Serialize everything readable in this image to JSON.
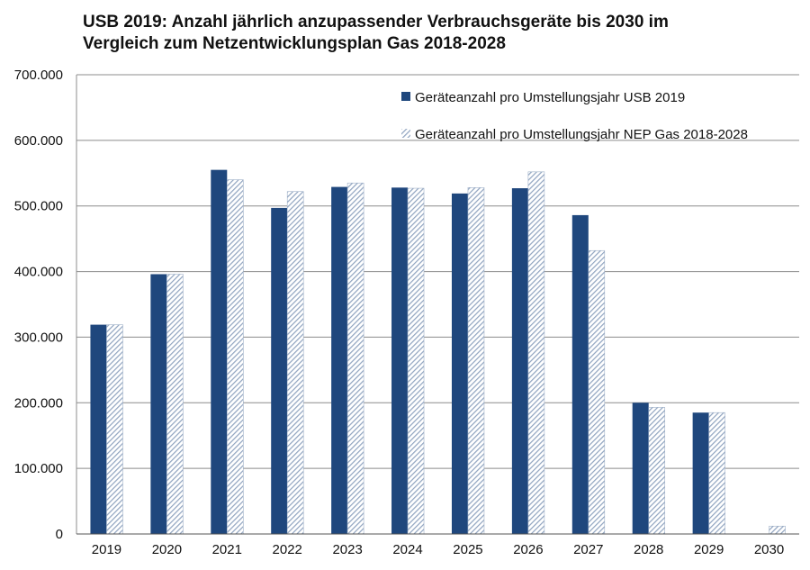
{
  "chart_data": {
    "type": "bar",
    "title_line1": "USB 2019: Anzahl jährlich anzupassender Verbrauchsgeräte bis 2030 im",
    "title_line2": "Vergleich zum Netzentwicklungsplan Gas 2018-2028",
    "categories": [
      "2019",
      "2020",
      "2021",
      "2022",
      "2023",
      "2024",
      "2025",
      "2026",
      "2027",
      "2028",
      "2029",
      "2030"
    ],
    "series": [
      {
        "name": "Geräteanzahl pro Umstellungsjahr USB 2019",
        "values": [
          319000,
          396000,
          555000,
          497000,
          529000,
          528000,
          519000,
          527000,
          486000,
          200000,
          185000,
          0
        ],
        "fill": "solid",
        "color": "#1f477d"
      },
      {
        "name": "Geräteanzahl pro Umstellungsjahr NEP Gas 2018-2028",
        "values": [
          319000,
          396000,
          540000,
          522000,
          535000,
          527000,
          528000,
          552000,
          432000,
          193000,
          185000,
          12000
        ],
        "fill": "hatched",
        "color": "#8fa3bf"
      }
    ],
    "ylim": [
      0,
      700000
    ],
    "yticks": [
      {
        "value": 0,
        "label": "0"
      },
      {
        "value": 100000,
        "label": "100.000"
      },
      {
        "value": 200000,
        "label": "200.000"
      },
      {
        "value": 300000,
        "label": "300.000"
      },
      {
        "value": 400000,
        "label": "400.000"
      },
      {
        "value": 500000,
        "label": "500.000"
      },
      {
        "value": 600000,
        "label": "600.000"
      },
      {
        "value": 700000,
        "label": "700.000"
      }
    ],
    "grid": true,
    "legend_position": "top-right",
    "xlabel": "",
    "ylabel": ""
  }
}
